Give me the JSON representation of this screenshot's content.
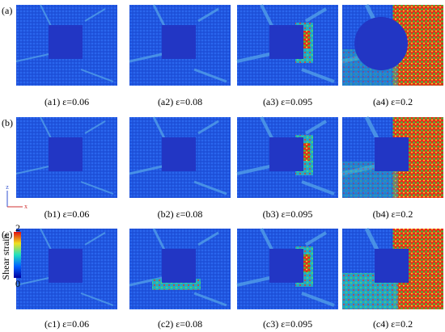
{
  "rows": [
    {
      "label": "(a)",
      "panels": [
        {
          "caption": "(a1) ε=0.06"
        },
        {
          "caption": "(a2) ε=0.08"
        },
        {
          "caption": "(a3) ε=0.095"
        },
        {
          "caption": "(a4) ε=0.2"
        }
      ]
    },
    {
      "label": "(b)",
      "panels": [
        {
          "caption": "(b1) ε=0.06"
        },
        {
          "caption": "(b2) ε=0.08"
        },
        {
          "caption": "(b3) ε=0.095"
        },
        {
          "caption": "(b4) ε=0.2"
        }
      ]
    },
    {
      "label": "(c)",
      "panels": [
        {
          "caption": "(c1) ε=0.06"
        },
        {
          "caption": "(c2) ε=0.08"
        },
        {
          "caption": "(c3) ε=0.095"
        },
        {
          "caption": "(c4) ε=0.2"
        }
      ]
    }
  ],
  "colorbar": {
    "title": "Shear strain",
    "max_label": "2",
    "min_label": "0"
  },
  "axes": {
    "vertical": "z",
    "horizontal": "x"
  }
}
